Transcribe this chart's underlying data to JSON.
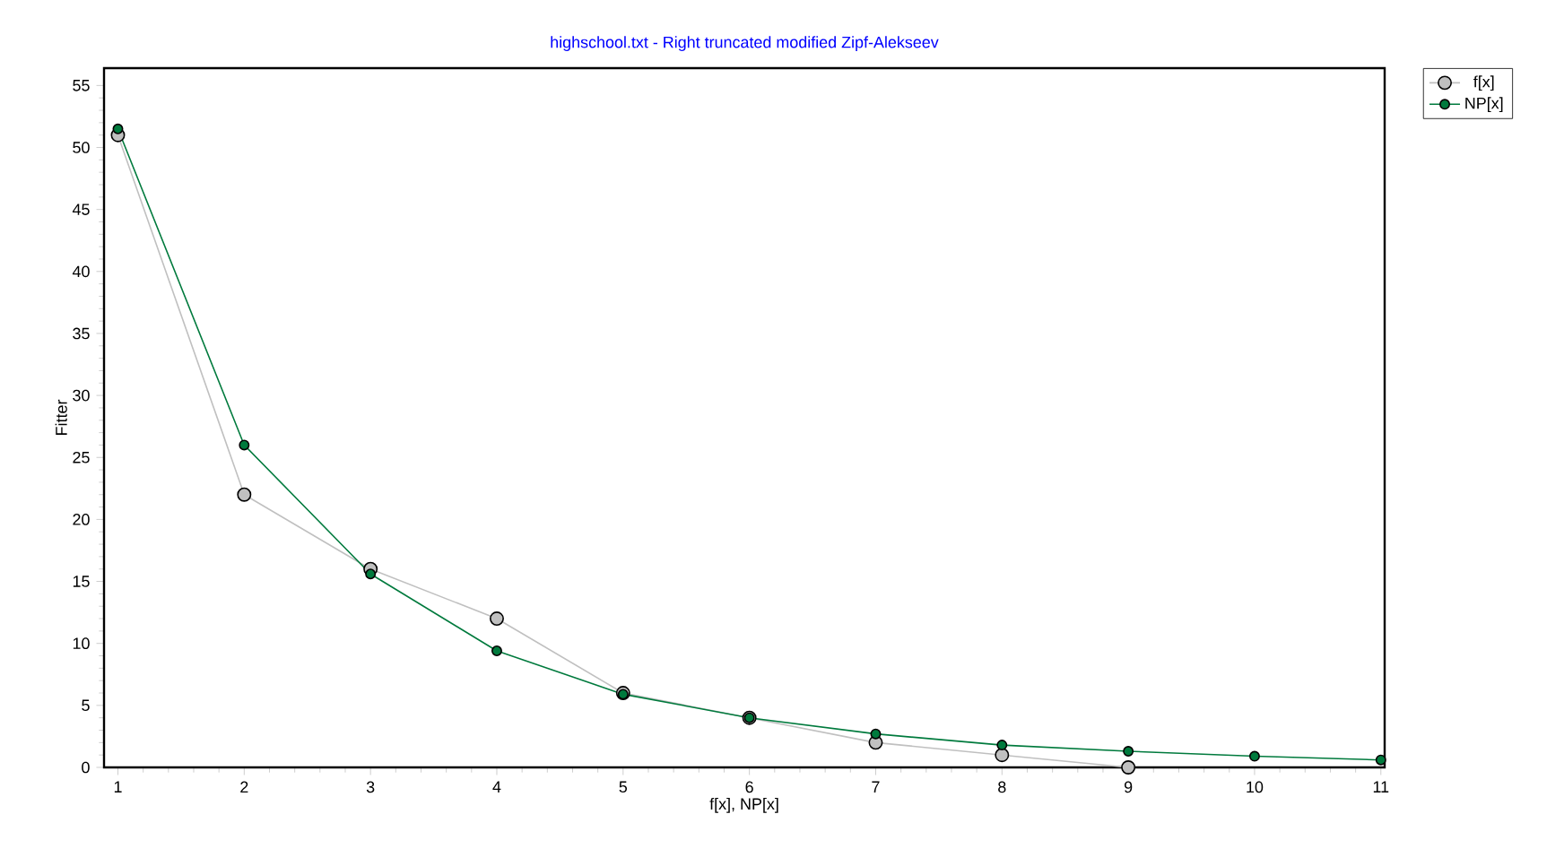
{
  "chart_data": {
    "type": "line",
    "title": "highschool.txt  -  Right truncated modified Zipf-Alekseev",
    "xlabel": "f[x], NP[x]",
    "ylabel": "Fitter",
    "x": [
      1,
      2,
      3,
      4,
      5,
      6,
      7,
      8,
      9,
      10,
      11
    ],
    "series": [
      {
        "name": "f[x]",
        "color": "#c0c0c0",
        "values": [
          51,
          22,
          16,
          12,
          6,
          4,
          2,
          1,
          0,
          null,
          null
        ]
      },
      {
        "name": "NP[x]",
        "color": "#007a3d",
        "values": [
          51.5,
          26,
          15.6,
          9.4,
          5.9,
          4.0,
          2.7,
          1.8,
          1.3,
          0.9,
          0.6
        ]
      }
    ],
    "xlim": [
      0.89,
      11.03
    ],
    "ylim": [
      0,
      56.4
    ],
    "xticks": [
      1,
      2,
      3,
      4,
      5,
      6,
      7,
      8,
      9,
      10,
      11
    ],
    "yticks": [
      0,
      5,
      10,
      15,
      20,
      25,
      30,
      35,
      40,
      45,
      50,
      55
    ],
    "marker": "circle",
    "legend": "top right",
    "grid": false
  }
}
